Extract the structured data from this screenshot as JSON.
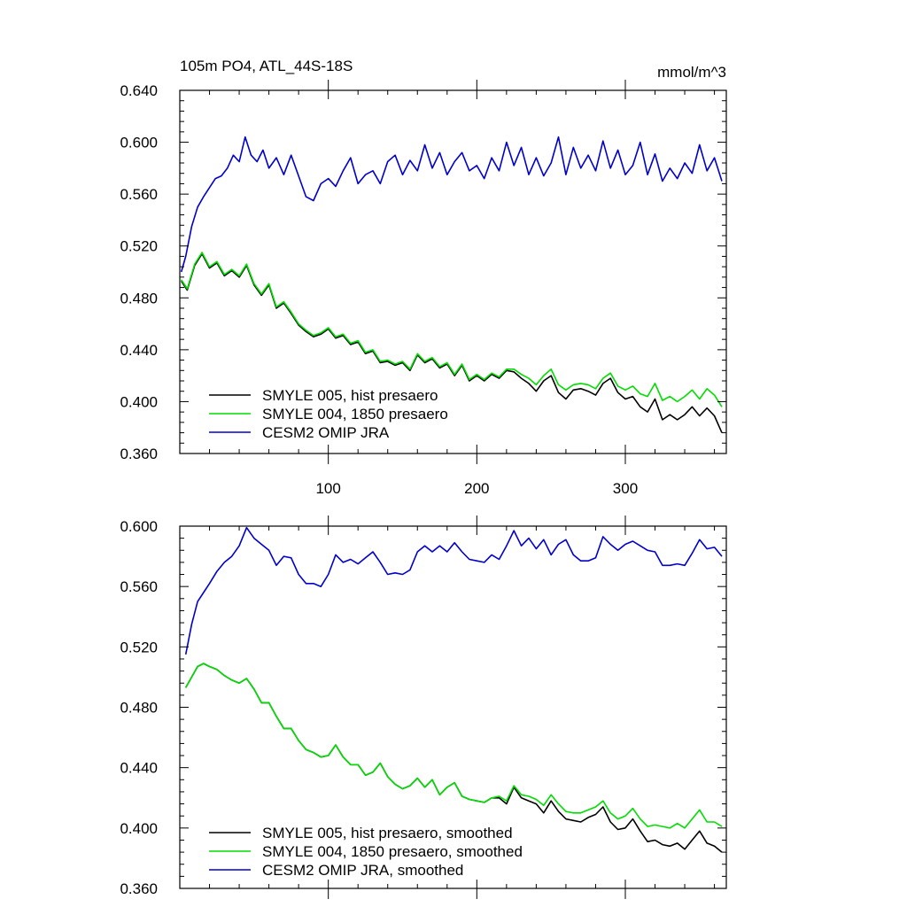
{
  "chart_data": [
    {
      "type": "line",
      "title": "105m PO4, ATL_44S-18S",
      "units": "mmol/m^3",
      "xlim": [
        0,
        368
      ],
      "ylim": [
        0.36,
        0.64
      ],
      "xticks": [
        100,
        200,
        300
      ],
      "xtick_labels": [
        "100",
        "200",
        "300"
      ],
      "yticks": [
        0.36,
        0.4,
        0.44,
        0.48,
        0.52,
        0.56,
        0.6,
        0.64
      ],
      "ytick_labels": [
        "0.360",
        "0.400",
        "0.440",
        "0.480",
        "0.520",
        "0.560",
        "0.600",
        "0.640"
      ],
      "legend_position": "bottom-left",
      "series": [
        {
          "name": "SMYLE 005, hist presaero",
          "color": "#000000",
          "x": [
            1,
            5,
            10,
            15,
            20,
            25,
            30,
            35,
            40,
            45,
            50,
            55,
            60,
            65,
            70,
            75,
            80,
            85,
            90,
            95,
            100,
            105,
            110,
            115,
            120,
            125,
            130,
            135,
            140,
            145,
            150,
            155,
            160,
            165,
            170,
            175,
            180,
            185,
            190,
            195,
            200,
            205,
            210,
            215,
            220,
            225,
            230,
            235,
            240,
            245,
            250,
            255,
            260,
            265,
            270,
            275,
            280,
            285,
            290,
            295,
            300,
            305,
            310,
            315,
            320,
            325,
            330,
            335,
            340,
            345,
            350,
            355,
            360,
            365
          ],
          "y": [
            0.493,
            0.486,
            0.505,
            0.514,
            0.503,
            0.507,
            0.497,
            0.501,
            0.496,
            0.505,
            0.49,
            0.482,
            0.49,
            0.472,
            0.476,
            0.468,
            0.459,
            0.454,
            0.45,
            0.452,
            0.456,
            0.449,
            0.451,
            0.444,
            0.446,
            0.437,
            0.439,
            0.43,
            0.431,
            0.428,
            0.43,
            0.424,
            0.436,
            0.43,
            0.433,
            0.426,
            0.429,
            0.42,
            0.428,
            0.416,
            0.42,
            0.416,
            0.421,
            0.418,
            0.424,
            0.423,
            0.418,
            0.414,
            0.408,
            0.416,
            0.42,
            0.407,
            0.402,
            0.409,
            0.41,
            0.408,
            0.405,
            0.414,
            0.418,
            0.407,
            0.402,
            0.404,
            0.396,
            0.392,
            0.402,
            0.386,
            0.39,
            0.386,
            0.39,
            0.396,
            0.389,
            0.395,
            0.389,
            0.376
          ]
        },
        {
          "name": "SMYLE 004, 1850 presaero",
          "color": "#00dd00",
          "x": [
            1,
            5,
            10,
            15,
            20,
            25,
            30,
            35,
            40,
            45,
            50,
            55,
            60,
            65,
            70,
            75,
            80,
            85,
            90,
            95,
            100,
            105,
            110,
            115,
            120,
            125,
            130,
            135,
            140,
            145,
            150,
            155,
            160,
            165,
            170,
            175,
            180,
            185,
            190,
            195,
            200,
            205,
            210,
            215,
            220,
            225,
            230,
            235,
            240,
            245,
            250,
            255,
            260,
            265,
            270,
            275,
            280,
            285,
            290,
            295,
            300,
            305,
            310,
            315,
            320,
            325,
            330,
            335,
            340,
            345,
            350,
            355,
            360,
            365
          ],
          "y": [
            0.494,
            0.487,
            0.506,
            0.515,
            0.504,
            0.508,
            0.498,
            0.502,
            0.497,
            0.506,
            0.491,
            0.483,
            0.491,
            0.473,
            0.477,
            0.469,
            0.46,
            0.455,
            0.451,
            0.453,
            0.457,
            0.45,
            0.452,
            0.445,
            0.447,
            0.438,
            0.44,
            0.431,
            0.432,
            0.429,
            0.431,
            0.425,
            0.437,
            0.431,
            0.434,
            0.427,
            0.43,
            0.421,
            0.429,
            0.417,
            0.421,
            0.417,
            0.422,
            0.419,
            0.425,
            0.425,
            0.421,
            0.418,
            0.413,
            0.42,
            0.425,
            0.413,
            0.409,
            0.413,
            0.414,
            0.413,
            0.41,
            0.418,
            0.422,
            0.412,
            0.409,
            0.412,
            0.406,
            0.404,
            0.414,
            0.401,
            0.404,
            0.4,
            0.404,
            0.409,
            0.402,
            0.41,
            0.405,
            0.396
          ]
        },
        {
          "name": "CESM2 OMIP JRA",
          "color": "#0000cc",
          "x": [
            1,
            4,
            8,
            12,
            16,
            20,
            24,
            28,
            32,
            36,
            40,
            44,
            48,
            52,
            56,
            60,
            65,
            70,
            75,
            80,
            85,
            90,
            95,
            100,
            105,
            110,
            115,
            120,
            125,
            130,
            135,
            140,
            145,
            150,
            155,
            160,
            165,
            170,
            175,
            180,
            185,
            190,
            195,
            200,
            205,
            210,
            215,
            220,
            225,
            230,
            235,
            240,
            245,
            250,
            255,
            260,
            265,
            270,
            275,
            280,
            285,
            290,
            295,
            300,
            305,
            310,
            315,
            320,
            325,
            330,
            335,
            340,
            345,
            350,
            355,
            360,
            365
          ],
          "y": [
            0.5,
            0.512,
            0.535,
            0.55,
            0.558,
            0.565,
            0.572,
            0.574,
            0.58,
            0.59,
            0.585,
            0.604,
            0.59,
            0.585,
            0.594,
            0.58,
            0.588,
            0.575,
            0.59,
            0.574,
            0.558,
            0.555,
            0.568,
            0.572,
            0.566,
            0.578,
            0.588,
            0.568,
            0.575,
            0.578,
            0.568,
            0.585,
            0.59,
            0.575,
            0.586,
            0.578,
            0.598,
            0.58,
            0.592,
            0.575,
            0.585,
            0.592,
            0.578,
            0.582,
            0.572,
            0.588,
            0.578,
            0.6,
            0.582,
            0.596,
            0.575,
            0.588,
            0.574,
            0.584,
            0.604,
            0.575,
            0.596,
            0.58,
            0.59,
            0.578,
            0.601,
            0.58,
            0.594,
            0.575,
            0.582,
            0.6,
            0.575,
            0.591,
            0.57,
            0.58,
            0.572,
            0.584,
            0.576,
            0.598,
            0.578,
            0.588,
            0.57
          ]
        }
      ]
    },
    {
      "type": "line",
      "xlim": [
        0,
        368
      ],
      "ylim": [
        0.36,
        0.6
      ],
      "xticks": [
        100,
        200,
        300
      ],
      "yticks": [
        0.36,
        0.4,
        0.44,
        0.48,
        0.52,
        0.56,
        0.6
      ],
      "ytick_labels": [
        "0.360",
        "0.400",
        "0.440",
        "0.480",
        "0.520",
        "0.560",
        "0.600"
      ],
      "legend_position": "bottom-left",
      "series": [
        {
          "name": "SMYLE 005, hist presaero, smoothed",
          "color": "#000000",
          "x": [
            4,
            8,
            12,
            16,
            20,
            25,
            30,
            35,
            40,
            45,
            50,
            55,
            60,
            65,
            70,
            75,
            80,
            85,
            90,
            95,
            100,
            105,
            110,
            115,
            120,
            125,
            130,
            135,
            140,
            145,
            150,
            155,
            160,
            165,
            170,
            175,
            180,
            185,
            190,
            195,
            200,
            205,
            210,
            215,
            220,
            225,
            230,
            235,
            240,
            245,
            250,
            255,
            260,
            265,
            270,
            275,
            280,
            285,
            290,
            295,
            300,
            305,
            310,
            315,
            320,
            325,
            330,
            335,
            340,
            345,
            350,
            355,
            360,
            365
          ],
          "y": [
            0.493,
            0.5,
            0.507,
            0.509,
            0.507,
            0.505,
            0.501,
            0.498,
            0.496,
            0.499,
            0.492,
            0.483,
            0.483,
            0.474,
            0.466,
            0.466,
            0.458,
            0.452,
            0.45,
            0.447,
            0.448,
            0.455,
            0.447,
            0.442,
            0.442,
            0.435,
            0.437,
            0.443,
            0.434,
            0.429,
            0.426,
            0.428,
            0.433,
            0.427,
            0.432,
            0.422,
            0.427,
            0.43,
            0.421,
            0.419,
            0.418,
            0.417,
            0.42,
            0.42,
            0.416,
            0.427,
            0.42,
            0.418,
            0.416,
            0.41,
            0.418,
            0.411,
            0.406,
            0.405,
            0.404,
            0.407,
            0.409,
            0.414,
            0.404,
            0.399,
            0.4,
            0.406,
            0.398,
            0.391,
            0.392,
            0.389,
            0.388,
            0.39,
            0.386,
            0.392,
            0.398,
            0.39,
            0.388,
            0.384
          ]
        },
        {
          "name": "SMYLE 004, 1850 presaero, smoothed",
          "color": "#00dd00",
          "x": [
            4,
            8,
            12,
            16,
            20,
            25,
            30,
            35,
            40,
            45,
            50,
            55,
            60,
            65,
            70,
            75,
            80,
            85,
            90,
            95,
            100,
            105,
            110,
            115,
            120,
            125,
            130,
            135,
            140,
            145,
            150,
            155,
            160,
            165,
            170,
            175,
            180,
            185,
            190,
            195,
            200,
            205,
            210,
            215,
            220,
            225,
            230,
            235,
            240,
            245,
            250,
            255,
            260,
            265,
            270,
            275,
            280,
            285,
            290,
            295,
            300,
            305,
            310,
            315,
            320,
            325,
            330,
            335,
            340,
            345,
            350,
            355,
            360,
            365
          ],
          "y": [
            0.493,
            0.5,
            0.507,
            0.509,
            0.507,
            0.505,
            0.501,
            0.498,
            0.496,
            0.499,
            0.492,
            0.483,
            0.483,
            0.474,
            0.466,
            0.466,
            0.458,
            0.452,
            0.45,
            0.447,
            0.448,
            0.455,
            0.447,
            0.442,
            0.442,
            0.435,
            0.437,
            0.443,
            0.434,
            0.429,
            0.426,
            0.428,
            0.433,
            0.427,
            0.432,
            0.422,
            0.427,
            0.43,
            0.421,
            0.419,
            0.418,
            0.417,
            0.42,
            0.421,
            0.418,
            0.428,
            0.422,
            0.421,
            0.419,
            0.415,
            0.422,
            0.416,
            0.411,
            0.41,
            0.41,
            0.412,
            0.414,
            0.418,
            0.41,
            0.406,
            0.408,
            0.413,
            0.406,
            0.401,
            0.402,
            0.401,
            0.4,
            0.403,
            0.4,
            0.406,
            0.412,
            0.404,
            0.404,
            0.401
          ]
        },
        {
          "name": "CESM2 OMIP JRA, smoothed",
          "color": "#0000cc",
          "x": [
            4,
            8,
            12,
            16,
            20,
            25,
            30,
            35,
            40,
            45,
            50,
            55,
            60,
            65,
            70,
            75,
            80,
            85,
            90,
            95,
            100,
            105,
            110,
            115,
            120,
            125,
            130,
            135,
            140,
            145,
            150,
            155,
            160,
            165,
            170,
            175,
            180,
            185,
            190,
            195,
            200,
            205,
            210,
            215,
            220,
            225,
            230,
            235,
            240,
            245,
            250,
            255,
            260,
            265,
            270,
            275,
            280,
            285,
            290,
            295,
            300,
            305,
            310,
            315,
            320,
            325,
            330,
            335,
            340,
            345,
            350,
            355,
            360,
            365
          ],
          "y": [
            0.515,
            0.535,
            0.55,
            0.556,
            0.562,
            0.57,
            0.576,
            0.58,
            0.587,
            0.599,
            0.592,
            0.588,
            0.584,
            0.574,
            0.58,
            0.579,
            0.568,
            0.562,
            0.562,
            0.56,
            0.568,
            0.581,
            0.576,
            0.578,
            0.575,
            0.579,
            0.583,
            0.576,
            0.568,
            0.569,
            0.568,
            0.571,
            0.583,
            0.587,
            0.583,
            0.587,
            0.583,
            0.589,
            0.583,
            0.578,
            0.577,
            0.576,
            0.581,
            0.578,
            0.587,
            0.597,
            0.587,
            0.592,
            0.585,
            0.591,
            0.581,
            0.588,
            0.591,
            0.581,
            0.577,
            0.577,
            0.579,
            0.593,
            0.588,
            0.584,
            0.588,
            0.59,
            0.587,
            0.584,
            0.583,
            0.574,
            0.574,
            0.575,
            0.574,
            0.582,
            0.591,
            0.585,
            0.586,
            0.58
          ]
        }
      ]
    }
  ]
}
